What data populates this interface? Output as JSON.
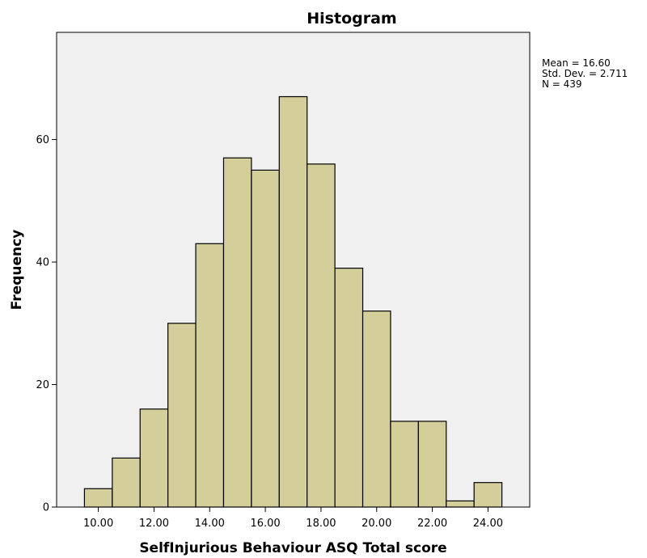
{
  "chart_data": {
    "type": "bar",
    "title": "Histogram",
    "xlabel": "SelfInjurious Behaviour ASQ Total score",
    "ylabel": "Frequency",
    "bin_width": 1,
    "bins": [
      {
        "start": 9.5,
        "end": 10.5,
        "count": 3
      },
      {
        "start": 10.5,
        "end": 11.5,
        "count": 8
      },
      {
        "start": 11.5,
        "end": 12.5,
        "count": 16
      },
      {
        "start": 12.5,
        "end": 13.5,
        "count": 30
      },
      {
        "start": 13.5,
        "end": 14.5,
        "count": 43
      },
      {
        "start": 14.5,
        "end": 15.5,
        "count": 57
      },
      {
        "start": 15.5,
        "end": 16.5,
        "count": 55
      },
      {
        "start": 16.5,
        "end": 17.5,
        "count": 67
      },
      {
        "start": 17.5,
        "end": 18.5,
        "count": 56
      },
      {
        "start": 18.5,
        "end": 19.5,
        "count": 39
      },
      {
        "start": 19.5,
        "end": 20.5,
        "count": 32
      },
      {
        "start": 20.5,
        "end": 21.5,
        "count": 14
      },
      {
        "start": 21.5,
        "end": 22.5,
        "count": 14
      },
      {
        "start": 22.5,
        "end": 23.5,
        "count": 1
      },
      {
        "start": 23.5,
        "end": 24.5,
        "count": 4
      }
    ],
    "xlim": [
      8.5,
      25.5
    ],
    "ylim": [
      0,
      77.5
    ],
    "xticks": [
      10,
      12,
      14,
      16,
      18,
      20,
      22,
      24
    ],
    "xtick_labels": [
      "10.00",
      "12.00",
      "14.00",
      "16.00",
      "18.00",
      "20.00",
      "22.00",
      "24.00"
    ],
    "yticks": [
      0,
      20,
      40,
      60
    ],
    "ytick_labels": [
      "0",
      "20",
      "40",
      "60"
    ],
    "grid": false,
    "stats": {
      "mean": "Mean = 16.60",
      "std": "Std. Dev. = 2.711",
      "n": "N = 439"
    },
    "colors": {
      "bar_fill": "#d4cf9a",
      "bar_stroke": "#000000",
      "plot_background": "#f0f0f0"
    }
  }
}
